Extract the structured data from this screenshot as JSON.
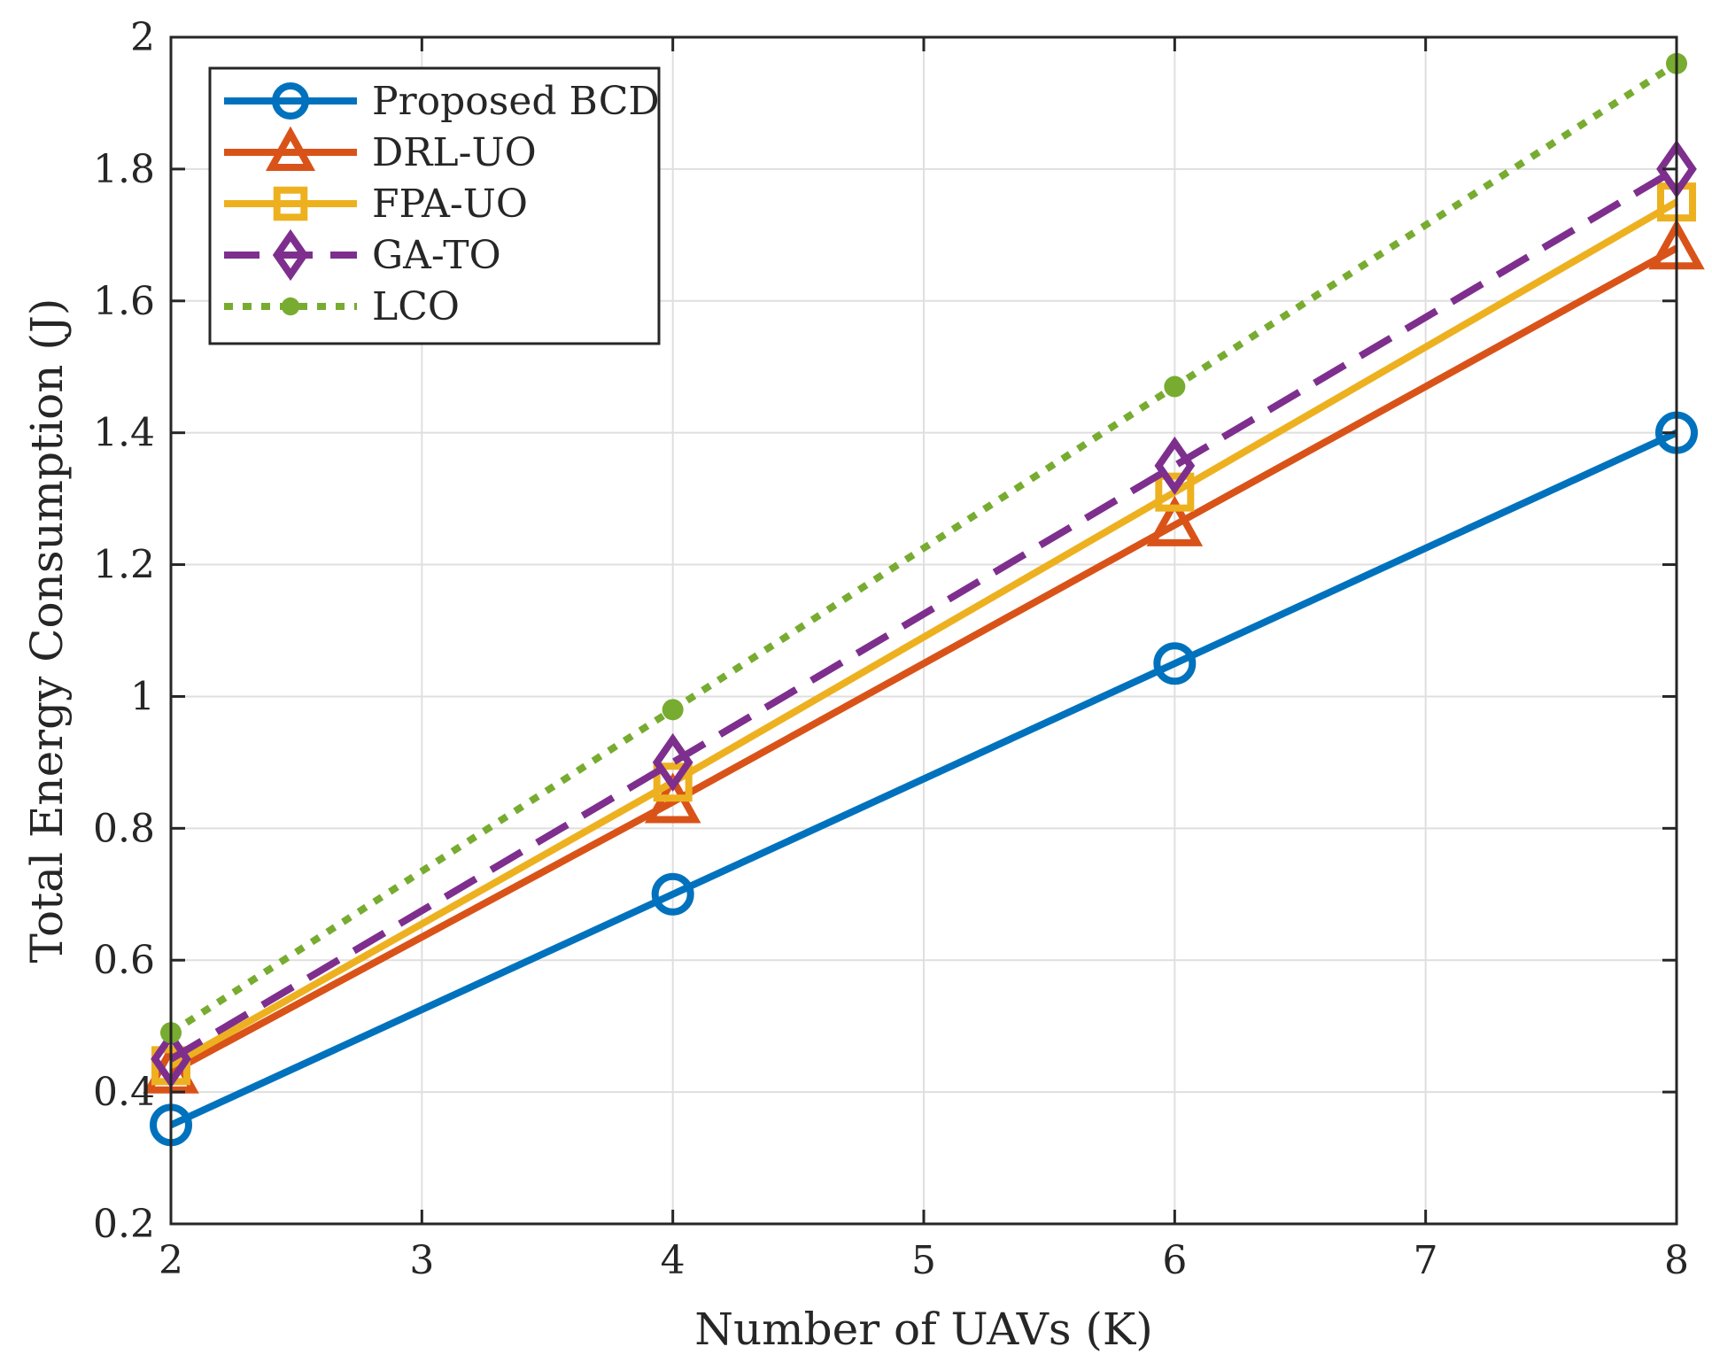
{
  "chart_data": {
    "type": "line",
    "title": "",
    "xlabel": "Number of UAVs (K)",
    "ylabel": "Total Energy Consumption (J)",
    "xlim": [
      2,
      8
    ],
    "ylim": [
      0.2,
      2
    ],
    "xticks": [
      2,
      3,
      4,
      5,
      6,
      7,
      8
    ],
    "xtick_labels": [
      "2",
      "3",
      "4",
      "5",
      "6",
      "7",
      "8"
    ],
    "yticks": [
      0.2,
      0.4,
      0.6,
      0.8,
      1.0,
      1.2,
      1.4,
      1.6,
      1.8,
      2.0
    ],
    "ytick_labels": [
      "0.2",
      "0.4",
      "0.6",
      "0.8",
      "1",
      "1.2",
      "1.4",
      "1.6",
      "1.8",
      "2"
    ],
    "grid": true,
    "legend_position": "top-left",
    "x": [
      2,
      4,
      6,
      8
    ],
    "series": [
      {
        "name": "Proposed BCD",
        "values": [
          0.35,
          0.7,
          1.05,
          1.4
        ],
        "color": "#0072BD",
        "marker": "circle",
        "line_style": "solid"
      },
      {
        "name": "DRL-UO",
        "values": [
          0.43,
          0.84,
          1.26,
          1.68
        ],
        "color": "#D95319",
        "marker": "triangle",
        "line_style": "solid"
      },
      {
        "name": "FPA-UO",
        "values": [
          0.44,
          0.87,
          1.31,
          1.75
        ],
        "color": "#EDB120",
        "marker": "square",
        "line_style": "solid"
      },
      {
        "name": "GA-TO",
        "values": [
          0.45,
          0.9,
          1.35,
          1.8
        ],
        "color": "#7E2F8E",
        "marker": "diamond",
        "line_style": "dashed"
      },
      {
        "name": "LCO",
        "values": [
          0.49,
          0.98,
          1.47,
          1.96
        ],
        "color": "#77AC30",
        "marker": "dot",
        "line_style": "dotted"
      }
    ]
  }
}
